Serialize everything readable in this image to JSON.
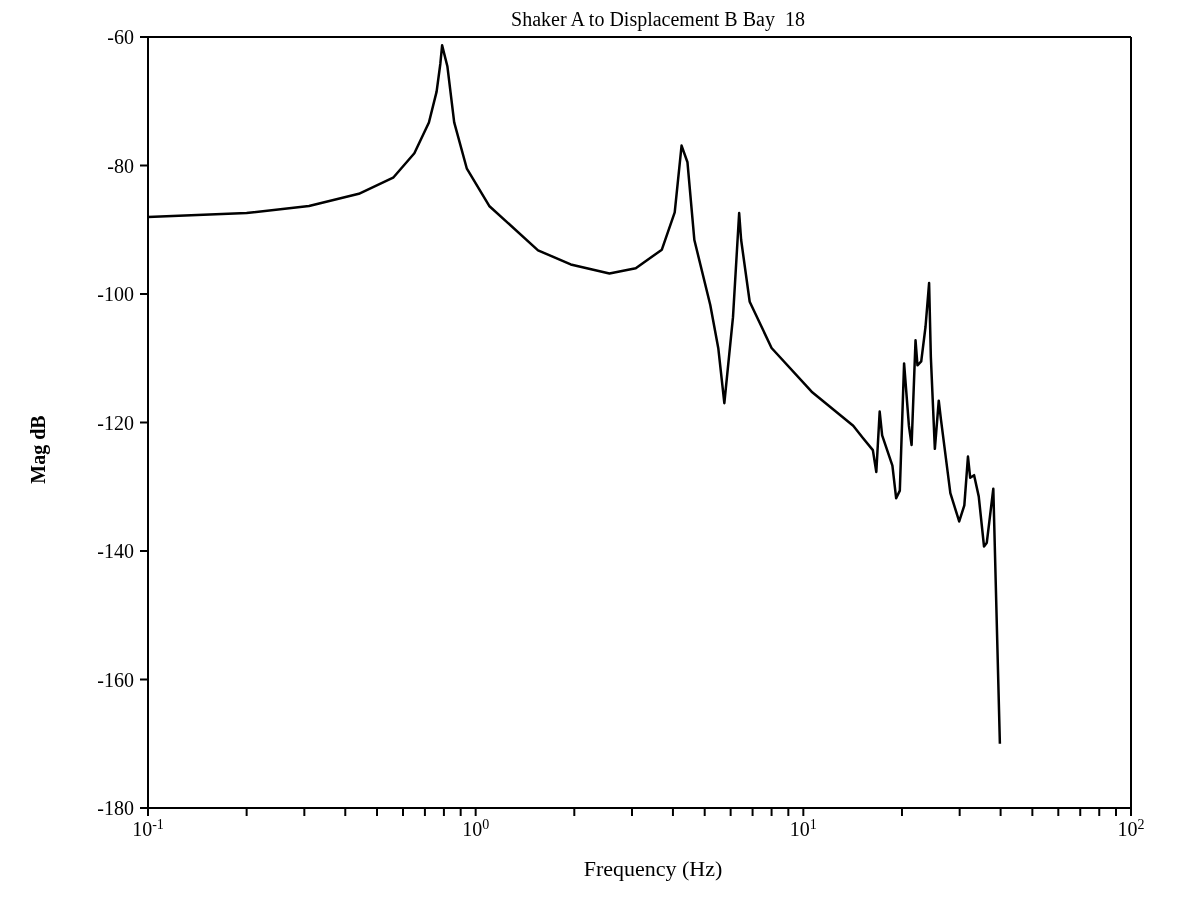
{
  "chart_data": {
    "type": "line",
    "title": "Shaker A to Displacement B Bay  18",
    "xlabel": "Frequency (Hz)",
    "ylabel": "Mag dB",
    "log": "x",
    "grid": false,
    "marker": "none",
    "line_style": "solid",
    "xlim": [
      0.1,
      100
    ],
    "ylim": [
      -180,
      -60
    ],
    "xticks": [
      {
        "value": 0.1,
        "label": "10$^{-1}$"
      },
      {
        "value": 0.2,
        "label": null
      },
      {
        "value": 0.3,
        "label": null
      },
      {
        "value": 0.4,
        "label": null
      },
      {
        "value": 0.5,
        "label": null
      },
      {
        "value": 0.6,
        "label": null
      },
      {
        "value": 0.7,
        "label": null
      },
      {
        "value": 0.8,
        "label": null
      },
      {
        "value": 0.9,
        "label": null
      },
      {
        "value": 1,
        "label": "10$^{0}$"
      },
      {
        "value": 2,
        "label": null
      },
      {
        "value": 3,
        "label": null
      },
      {
        "value": 4,
        "label": null
      },
      {
        "value": 5,
        "label": null
      },
      {
        "value": 6,
        "label": null
      },
      {
        "value": 7,
        "label": null
      },
      {
        "value": 8,
        "label": null
      },
      {
        "value": 9,
        "label": null
      },
      {
        "value": 10,
        "label": "10$^{1}$"
      },
      {
        "value": 20,
        "label": null
      },
      {
        "value": 30,
        "label": null
      },
      {
        "value": 40,
        "label": null
      },
      {
        "value": 50,
        "label": null
      },
      {
        "value": 60,
        "label": null
      },
      {
        "value": 70,
        "label": null
      },
      {
        "value": 80,
        "label": null
      },
      {
        "value": 90,
        "label": null
      },
      {
        "value": 100,
        "label": "10$^{2}$"
      }
    ],
    "yticks": [
      -180,
      -160,
      -140,
      -120,
      -100,
      -80,
      -60
    ],
    "series": [
      {
        "color": "#000000",
        "x": [
          0.1,
          0.2,
          0.31,
          0.44,
          0.56,
          0.65,
          0.72,
          0.76,
          0.78,
          0.79,
          0.82,
          0.86,
          0.94,
          1.1,
          1.55,
          1.95,
          2.56,
          3.08,
          3.7,
          4.05,
          4.25,
          4.43,
          4.65,
          5.2,
          5.5,
          5.74,
          6.1,
          6.37,
          6.46,
          6.86,
          8.0,
          10.6,
          14.2,
          15.2,
          16.3,
          16.7,
          17.1,
          17.4,
          18.7,
          19.2,
          19.7,
          20.3,
          21.0,
          21.4,
          22.0,
          22.3,
          22.9,
          23.6,
          24.2,
          24.5,
          25.2,
          25.9,
          26.3,
          28.1,
          29.9,
          31.0,
          31.8,
          32.3,
          33.2,
          34.3,
          35.6,
          36.3,
          38.0,
          39.8
        ],
        "values": [
          -88,
          -87.4,
          -86.3,
          -84.4,
          -81.9,
          -78.1,
          -73.3,
          -68.5,
          -64.2,
          -61.3,
          -64.6,
          -73.3,
          -80.5,
          -86.3,
          -93.2,
          -95.4,
          -96.8,
          -96,
          -93.1,
          -87.3,
          -76.9,
          -79.5,
          -91.6,
          -101.7,
          -108.4,
          -117,
          -103.6,
          -87.4,
          -91.6,
          -101.2,
          -108.4,
          -115.2,
          -120.5,
          -122.4,
          -124.3,
          -127.7,
          -118.3,
          -122,
          -126.7,
          -131.8,
          -130.6,
          -110.8,
          -120.5,
          -123.5,
          -107.2,
          -111.1,
          -110.5,
          -105.1,
          -98.3,
          -109.8,
          -124.1,
          -116.6,
          -119.5,
          -131,
          -135.4,
          -132.9,
          -125.3,
          -128.6,
          -128.2,
          -131.5,
          -139.3,
          -138.7,
          -130.3,
          -170
        ]
      }
    ]
  }
}
